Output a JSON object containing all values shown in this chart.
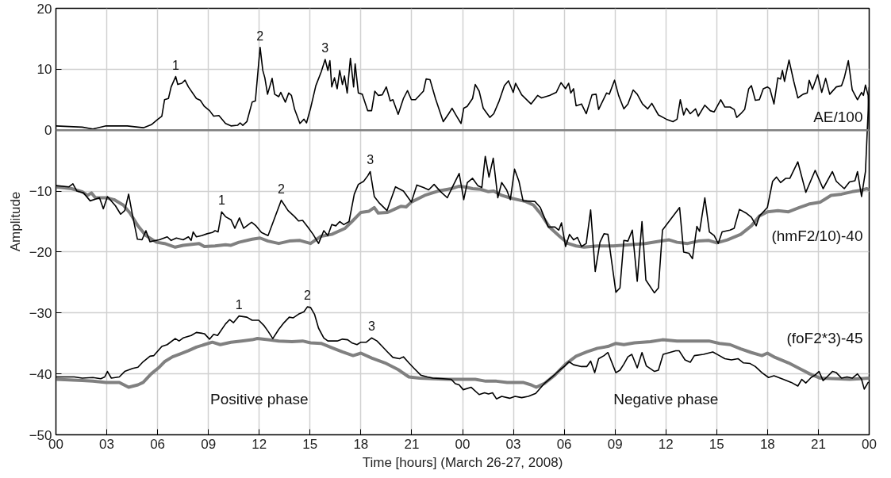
{
  "chart_data": {
    "type": "line",
    "xlabel": "Time [hours] (March 26-27, 2008)",
    "ylabel": "Amplitude",
    "xlim": [
      0,
      48
    ],
    "ylim": [
      -50,
      20
    ],
    "xticks": [
      {
        "value": 0,
        "label": "00"
      },
      {
        "value": 3,
        "label": "03"
      },
      {
        "value": 6,
        "label": "06"
      },
      {
        "value": 9,
        "label": "09"
      },
      {
        "value": 12,
        "label": "12"
      },
      {
        "value": 15,
        "label": "15"
      },
      {
        "value": 18,
        "label": "18"
      },
      {
        "value": 21,
        "label": "21"
      },
      {
        "value": 24,
        "label": "00"
      },
      {
        "value": 27,
        "label": "03"
      },
      {
        "value": 30,
        "label": "06"
      },
      {
        "value": 33,
        "label": "09"
      },
      {
        "value": 36,
        "label": "12"
      },
      {
        "value": 39,
        "label": "15"
      },
      {
        "value": 42,
        "label": "18"
      },
      {
        "value": 45,
        "label": "21"
      },
      {
        "value": 48,
        "label": "00"
      }
    ],
    "yticks": [
      -50,
      -40,
      -30,
      -20,
      -10,
      0,
      10,
      20
    ],
    "grid": true,
    "marker": "none",
    "line_style": "solid",
    "ref_lines": [
      {
        "axis": "y",
        "value": 0,
        "label": null,
        "color": "#808080"
      }
    ],
    "series": [
      {
        "name": "AE/100",
        "color": "#000000",
        "x": [
          0,
          1.55,
          2.18,
          2.96,
          4.21,
          5.16,
          5.63,
          6.02,
          6.25,
          6.41,
          6.64,
          6.8,
          7.07,
          7.19,
          7.43,
          7.62,
          7.82,
          8.29,
          8.52,
          8.76,
          9.07,
          9.31,
          9.62,
          10.01,
          10.33,
          10.72,
          10.87,
          11.03,
          11.27,
          11.58,
          11.77,
          12.05,
          12.21,
          12.33,
          12.49,
          12.76,
          12.91,
          13.15,
          13.27,
          13.54,
          13.74,
          13.9,
          14.09,
          14.4,
          14.64,
          14.79,
          15.03,
          15.34,
          15.66,
          15.89,
          16.05,
          16.17,
          16.28,
          16.44,
          16.6,
          16.75,
          16.91,
          17.03,
          17.19,
          17.38,
          17.57,
          17.66,
          17.85,
          18.08,
          18.4,
          18.63,
          18.82,
          19.03,
          19.26,
          19.5,
          19.73,
          19.89,
          20.2,
          20.51,
          20.75,
          20.98,
          21.22,
          21.69,
          21.85,
          22.08,
          22.4,
          22.86,
          23.18,
          23.38,
          23.65,
          23.91,
          24.07,
          24.27,
          24.59,
          24.75,
          24.98,
          25.22,
          25.61,
          25.84,
          26.16,
          26.47,
          26.71,
          26.99,
          27.13,
          27.49,
          28.04,
          28.43,
          28.66,
          29.13,
          29.53,
          29.81,
          30.08,
          30.26,
          30.39,
          30.55,
          30.7,
          31.02,
          31.3,
          31.64,
          31.88,
          32.03,
          32.5,
          32.66,
          32.97,
          33.21,
          33.52,
          33.76,
          34.07,
          34.31,
          34.62,
          34.93,
          35.17,
          35.56,
          36.03,
          36.42,
          36.66,
          36.85,
          37.05,
          37.21,
          37.44,
          37.75,
          37.91,
          38.3,
          38.62,
          38.85,
          39.24,
          39.48,
          39.79,
          40.03,
          40.18,
          40.42,
          40.65,
          40.89,
          41.05,
          41.28,
          41.52,
          41.75,
          41.99,
          42.14,
          42.38,
          42.61,
          42.77,
          42.88,
          43.0,
          43.27,
          43.55,
          43.79,
          44.1,
          44.34,
          44.46,
          44.65,
          44.96,
          45.2,
          45.43,
          45.67,
          46.06,
          46.37,
          46.53,
          46.77,
          47.0,
          47.31,
          47.55,
          47.66,
          47.78,
          47.94,
          48.0
        ],
        "values": [
          0.7,
          0.5,
          0.2,
          0.7,
          0.7,
          0.4,
          0.9,
          1.8,
          2.3,
          5.0,
          5.2,
          7.1,
          8.8,
          7.5,
          7.7,
          8.2,
          7.1,
          5.2,
          4.9,
          3.9,
          3.2,
          2.3,
          2.4,
          1.1,
          0.7,
          0.8,
          1.2,
          0.8,
          1.4,
          4.6,
          4.8,
          13.6,
          9.8,
          8.6,
          5.9,
          8.5,
          5.9,
          5.5,
          6.2,
          4.6,
          6.1,
          5.7,
          3.4,
          1.1,
          1.8,
          1.2,
          3.6,
          7.3,
          9.6,
          11.6,
          9.8,
          11.4,
          7.1,
          8.6,
          6.8,
          9.8,
          7.5,
          8.9,
          6.1,
          11.8,
          7.1,
          10.9,
          6.1,
          5.9,
          3.2,
          3.2,
          6.4,
          5.7,
          5.8,
          7.1,
          4.8,
          5.0,
          2.6,
          5.2,
          6.5,
          5.0,
          5.0,
          6.4,
          8.4,
          8.3,
          5.2,
          1.4,
          2.7,
          3.6,
          2.3,
          1.1,
          3.6,
          3.9,
          5.2,
          7.5,
          6.4,
          3.6,
          2.1,
          2.7,
          4.8,
          7.3,
          8.1,
          6.2,
          7.7,
          5.8,
          4.3,
          5.7,
          5.3,
          5.7,
          6.2,
          7.8,
          6.8,
          7.7,
          6.1,
          6.8,
          4.0,
          4.3,
          2.7,
          5.8,
          5.9,
          3.4,
          6.1,
          5.9,
          8.2,
          5.7,
          3.5,
          4.3,
          6.6,
          5.9,
          4.3,
          3.5,
          4.4,
          2.5,
          1.8,
          1.4,
          1.8,
          5.0,
          2.5,
          3.6,
          2.7,
          3.5,
          2.3,
          4.1,
          3.2,
          3.0,
          5.0,
          3.8,
          3.8,
          3.4,
          2.1,
          2.7,
          3.4,
          6.8,
          7.3,
          4.9,
          5.0,
          6.8,
          7.1,
          6.8,
          4.3,
          8.6,
          8.4,
          9.8,
          8.0,
          11.5,
          8.0,
          5.3,
          5.9,
          6.1,
          8.2,
          6.7,
          9.1,
          6.2,
          8.5,
          5.9,
          7.1,
          7.3,
          8.6,
          11.4,
          6.6,
          5.0,
          6.2,
          5.7,
          7.4,
          5.7,
          0
        ]
      },
      {
        "name": "(hmF2/10)-40",
        "color": "#808080",
        "x": [
          0,
          0.92,
          1.55,
          1.86,
          2.1,
          2.33,
          2.96,
          3.43,
          3.98,
          4.37,
          4.84,
          5.31,
          5.94,
          6.41,
          7.04,
          7.51,
          8.45,
          8.76,
          9.39,
          10.01,
          10.33,
          10.8,
          11.58,
          12.05,
          12.52,
          13.15,
          13.77,
          14.4,
          15.03,
          15.65,
          16.28,
          17.07,
          17.54,
          18.0,
          18.48,
          18.79,
          19.02,
          19.57,
          20.04,
          20.36,
          20.67,
          20.98,
          21.77,
          22.55,
          23.33,
          23.8,
          24.12,
          24.59,
          25.06,
          25.53,
          25.84,
          26.31,
          26.78,
          27.25,
          27.72,
          28.19,
          28.66,
          29.13,
          29.76,
          30.23,
          30.7,
          31.17,
          31.96,
          32.9,
          33.84,
          34.78,
          35.72,
          36.19,
          36.66,
          37.28,
          37.91,
          38.54,
          39.01,
          39.63,
          40.42,
          41.05,
          41.52,
          41.99,
          42.61,
          43.24,
          43.87,
          44.49,
          45.12,
          45.75,
          46.37,
          47.0,
          47.47,
          47.86,
          48.0
        ],
        "values": [
          -9.3,
          -9.6,
          -10.1,
          -10.7,
          -10.3,
          -11.1,
          -11.1,
          -11.4,
          -12.3,
          -13.6,
          -15.7,
          -17.3,
          -18.4,
          -18.6,
          -19.2,
          -18.9,
          -18.6,
          -19.1,
          -19.0,
          -18.8,
          -18.9,
          -18.4,
          -17.9,
          -17.7,
          -18.2,
          -18.6,
          -18.2,
          -18.1,
          -18.6,
          -17.4,
          -17.1,
          -16.1,
          -14.8,
          -13.5,
          -13.3,
          -12.7,
          -13.6,
          -13.5,
          -12.9,
          -12.5,
          -12.6,
          -11.8,
          -10.7,
          -10.0,
          -9.6,
          -9.2,
          -9.3,
          -9.6,
          -9.7,
          -10.1,
          -10.0,
          -10.7,
          -11.1,
          -11.4,
          -11.7,
          -12.3,
          -13.9,
          -15.9,
          -17.5,
          -18.6,
          -19.0,
          -19.2,
          -19.0,
          -19.0,
          -18.8,
          -18.6,
          -18.2,
          -18.0,
          -18.4,
          -18.6,
          -18.2,
          -18.1,
          -18.5,
          -18.0,
          -17.1,
          -15.7,
          -14.1,
          -13.4,
          -13.2,
          -13.4,
          -12.7,
          -12.1,
          -11.8,
          -10.7,
          -10.5,
          -10.1,
          -9.9,
          -9.6,
          -9.8
        ]
      },
      {
        "color": "#000000",
        "x": [
          0,
          0.77,
          1.0,
          1.24,
          1.63,
          2.02,
          2.57,
          2.8,
          3.04,
          3.51,
          3.82,
          4.06,
          4.29,
          4.53,
          4.81,
          5.08,
          5.31,
          5.55,
          6.1,
          6.57,
          6.8,
          7.11,
          7.51,
          7.82,
          7.98,
          8.1,
          8.29,
          8.6,
          8.92,
          9.23,
          9.39,
          9.57,
          9.78,
          10.01,
          10.33,
          10.56,
          10.83,
          11.08,
          11.55,
          11.81,
          12.13,
          12.52,
          13.3,
          13.7,
          14.09,
          14.32,
          14.56,
          14.87,
          15.18,
          15.5,
          15.81,
          16.05,
          16.28,
          16.52,
          16.75,
          16.99,
          17.3,
          17.61,
          17.85,
          18.16,
          18.4,
          18.55,
          18.79,
          19.1,
          19.54,
          20.04,
          20.51,
          20.98,
          21.3,
          21.69,
          22.0,
          22.32,
          22.71,
          23.1,
          23.41,
          23.8,
          24.07,
          24.28,
          24.59,
          24.9,
          25.14,
          25.34,
          25.56,
          25.81,
          26.08,
          26.31,
          26.6,
          26.82,
          27.07,
          27.33,
          27.57,
          28.27,
          28.59,
          29.06,
          29.45,
          29.68,
          29.84,
          30.08,
          30.31,
          30.55,
          30.78,
          31.02,
          31.3,
          31.56,
          31.83,
          32.11,
          32.35,
          32.58,
          33.05,
          33.29,
          33.52,
          33.76,
          34.02,
          34.31,
          34.59,
          34.82,
          35.32,
          35.56,
          35.8,
          36.81,
          37.05,
          37.36,
          37.57,
          37.83,
          37.99,
          38.3,
          38.57,
          38.85,
          39.09,
          39.32,
          39.79,
          40.03,
          40.34,
          40.73,
          41.05,
          41.33,
          41.52,
          41.99,
          42.3,
          42.53,
          42.77,
          43.08,
          43.32,
          43.79,
          44.26,
          44.81,
          45.28,
          45.83,
          46.06,
          46.53,
          46.84,
          47.16,
          47.31,
          47.55,
          47.78,
          48.0
        ],
        "values": [
          -9.1,
          -9.3,
          -8.8,
          -10.0,
          -10.3,
          -11.6,
          -11.1,
          -12.9,
          -10.9,
          -12.4,
          -13.8,
          -13.2,
          -10.5,
          -14.1,
          -17.9,
          -18.0,
          -16.5,
          -18.3,
          -18.0,
          -17.5,
          -18.1,
          -17.7,
          -18.0,
          -17.5,
          -18.1,
          -16.7,
          -17.5,
          -17.3,
          -17.0,
          -16.8,
          -16.5,
          -16.7,
          -13.4,
          -14.2,
          -14.7,
          -16.1,
          -14.4,
          -16.1,
          -15.1,
          -15.7,
          -16.8,
          -17.3,
          -11.5,
          -13.2,
          -14.2,
          -14.9,
          -14.8,
          -15.9,
          -17.1,
          -18.6,
          -16.5,
          -17.3,
          -15.5,
          -15.7,
          -15.0,
          -15.5,
          -15.0,
          -10.5,
          -8.9,
          -8.4,
          -7.5,
          -6.8,
          -10.9,
          -12.0,
          -13.2,
          -9.3,
          -10.0,
          -11.8,
          -9.0,
          -9.4,
          -9.8,
          -8.9,
          -10.1,
          -11.1,
          -9.3,
          -7.1,
          -11.4,
          -8.6,
          -7.9,
          -9.1,
          -9.4,
          -4.3,
          -7.7,
          -4.6,
          -11.1,
          -8.6,
          -9.8,
          -11.4,
          -6.4,
          -8.4,
          -11.6,
          -11.7,
          -12.7,
          -15.9,
          -15.9,
          -16.4,
          -15.2,
          -19.1,
          -17.1,
          -18.0,
          -17.6,
          -19.1,
          -18.6,
          -13.1,
          -23.2,
          -18.4,
          -17.0,
          -17.1,
          -26.6,
          -25.9,
          -18.1,
          -18.2,
          -16.4,
          -24.8,
          -15.0,
          -24.6,
          -26.7,
          -25.9,
          -16.4,
          -12.7,
          -20.0,
          -20.2,
          -21.1,
          -15.8,
          -16.6,
          -11.1,
          -16.7,
          -17.3,
          -18.6,
          -16.7,
          -16.4,
          -16.1,
          -13.0,
          -13.6,
          -14.3,
          -15.7,
          -14.1,
          -12.7,
          -8.4,
          -7.7,
          -8.6,
          -7.9,
          -7.9,
          -5.2,
          -10.2,
          -6.6,
          -9.6,
          -6.8,
          -8.4,
          -9.6,
          -8.5,
          -8.3,
          -6.8,
          -10.9,
          -6.8,
          7.0
        ]
      },
      {
        "name": "(foF2*3)-45",
        "color": "#808080",
        "x": [
          0,
          1.55,
          2.18,
          2.96,
          3.74,
          4.29,
          4.84,
          5.15,
          5.62,
          6.1,
          6.41,
          6.88,
          7.35,
          7.82,
          8.29,
          8.76,
          9.23,
          9.7,
          10.33,
          10.95,
          11.58,
          11.89,
          12.52,
          13.15,
          13.93,
          14.56,
          15.03,
          15.65,
          16.28,
          16.91,
          17.54,
          18.0,
          18.63,
          19.42,
          20.2,
          20.83,
          21.45,
          22.24,
          23.18,
          24.12,
          24.75,
          25.37,
          26.0,
          26.63,
          27.57,
          28.04,
          28.35,
          28.82,
          29.45,
          30.08,
          30.7,
          31.33,
          31.96,
          32.58,
          33.05,
          33.52,
          34.15,
          35.09,
          35.8,
          36.66,
          37.6,
          38.54,
          39.16,
          39.79,
          40.42,
          41.05,
          41.67,
          41.99,
          42.45,
          43.24,
          43.87,
          44.49,
          45.12,
          46.06,
          46.84,
          47.47,
          48.0
        ],
        "values": [
          -40.9,
          -41.1,
          -41.2,
          -41.4,
          -41.4,
          -42.2,
          -41.8,
          -41.4,
          -40.0,
          -38.9,
          -38.0,
          -37.2,
          -36.7,
          -36.2,
          -35.6,
          -35.2,
          -34.8,
          -35.2,
          -34.8,
          -34.6,
          -34.4,
          -34.2,
          -34.4,
          -34.6,
          -34.7,
          -34.6,
          -34.9,
          -35.0,
          -35.7,
          -36.4,
          -37.0,
          -36.6,
          -37.4,
          -38.2,
          -39.3,
          -40.5,
          -40.7,
          -40.8,
          -40.9,
          -40.9,
          -40.9,
          -41.2,
          -41.2,
          -41.4,
          -41.4,
          -41.8,
          -42.2,
          -41.6,
          -40.2,
          -38.4,
          -37.1,
          -36.4,
          -35.8,
          -35.5,
          -35.0,
          -35.2,
          -34.9,
          -34.7,
          -34.4,
          -34.6,
          -34.6,
          -34.6,
          -35.0,
          -35.2,
          -35.9,
          -36.5,
          -37.0,
          -36.6,
          -37.3,
          -38.2,
          -39.1,
          -40.0,
          -40.7,
          -40.8,
          -40.9,
          -40.8,
          -40.7
        ]
      },
      {
        "color": "#000000",
        "x": [
          0,
          1.08,
          1.55,
          2.18,
          2.65,
          2.88,
          3.04,
          3.27,
          3.74,
          4.06,
          4.53,
          4.84,
          5.15,
          5.55,
          5.78,
          6.25,
          6.57,
          7.04,
          7.27,
          7.51,
          7.98,
          8.29,
          8.76,
          9.07,
          9.31,
          9.54,
          10.01,
          10.25,
          10.48,
          10.8,
          11.27,
          11.58,
          11.97,
          12.29,
          12.52,
          12.8,
          13.15,
          13.46,
          13.77,
          14.01,
          14.32,
          14.64,
          14.84,
          15.03,
          15.26,
          15.5,
          15.81,
          16.05,
          16.6,
          16.91,
          17.22,
          17.46,
          17.77,
          18.0,
          18.32,
          18.63,
          18.95,
          19.26,
          19.57,
          19.89,
          20.28,
          20.51,
          20.83,
          21.14,
          21.53,
          21.92,
          22.24,
          22.86,
          23.33,
          23.57,
          23.8,
          24.04,
          24.51,
          24.98,
          25.3,
          25.53,
          25.77,
          26.0,
          26.31,
          26.78,
          27.1,
          27.49,
          27.88,
          28.32,
          28.82,
          29.29,
          29.76,
          30.0,
          30.28,
          30.55,
          31.02,
          31.33,
          31.56,
          31.8,
          32.03,
          32.35,
          32.58,
          33.05,
          33.29,
          33.52,
          33.76,
          33.99,
          34.31,
          34.59,
          34.85,
          35.33,
          35.56,
          35.84,
          36.58,
          36.78,
          37.13,
          37.44,
          37.68,
          38.22,
          38.77,
          39.16,
          39.48,
          39.87,
          40.26,
          40.58,
          40.97,
          41.28,
          41.67,
          42.06,
          42.38,
          42.93,
          43.4,
          43.79,
          44.02,
          44.26,
          44.57,
          44.81,
          45.04,
          45.28,
          45.51,
          45.83,
          46.06,
          46.37,
          46.69,
          47.0,
          47.31,
          47.55,
          47.71,
          47.94
        ],
        "values": [
          -40.5,
          -40.5,
          -40.7,
          -40.6,
          -40.8,
          -40.5,
          -39.6,
          -40.7,
          -40.5,
          -39.6,
          -39.1,
          -38.9,
          -38.0,
          -37.1,
          -37.0,
          -35.5,
          -35.2,
          -34.2,
          -34.6,
          -34.1,
          -33.7,
          -33.2,
          -33.4,
          -34.3,
          -33.5,
          -33.7,
          -31.8,
          -31.1,
          -31.6,
          -30.5,
          -30.7,
          -31.2,
          -31.2,
          -32.1,
          -33.0,
          -34.2,
          -32.7,
          -31.6,
          -30.7,
          -30.8,
          -30.2,
          -29.8,
          -29.0,
          -29.1,
          -30.2,
          -32.5,
          -34.1,
          -34.6,
          -34.6,
          -34.3,
          -34.4,
          -34.9,
          -35.2,
          -34.8,
          -34.8,
          -34.1,
          -34.6,
          -35.5,
          -36.4,
          -37.3,
          -37.5,
          -37.2,
          -38.2,
          -39.1,
          -40.2,
          -40.5,
          -40.7,
          -40.8,
          -40.9,
          -41.6,
          -41.8,
          -42.6,
          -42.2,
          -43.4,
          -43.1,
          -43.3,
          -43.1,
          -44.1,
          -43.7,
          -44.0,
          -43.7,
          -43.9,
          -43.7,
          -43.2,
          -41.6,
          -40.5,
          -39.3,
          -38.8,
          -38.0,
          -38.5,
          -38.8,
          -38.8,
          -37.9,
          -39.8,
          -37.5,
          -37.0,
          -36.5,
          -39.8,
          -39.4,
          -38.4,
          -37.2,
          -36.8,
          -39.0,
          -36.5,
          -38.7,
          -39.6,
          -39.4,
          -36.8,
          -36.2,
          -36.2,
          -37.7,
          -38.1,
          -37.0,
          -36.8,
          -36.4,
          -37.0,
          -37.5,
          -37.7,
          -37.5,
          -38.2,
          -38.3,
          -38.8,
          -39.8,
          -40.6,
          -40.3,
          -40.9,
          -41.4,
          -42.0,
          -40.9,
          -41.5,
          -40.6,
          -40.2,
          -39.6,
          -41.1,
          -40.5,
          -39.6,
          -39.8,
          -40.7,
          -40.5,
          -40.7,
          -40.0,
          -40.9,
          -42.5,
          -41.4
        ]
      }
    ],
    "annotations": [
      {
        "text": "1",
        "x": 7.07,
        "y": 8.8
      },
      {
        "text": "2",
        "x": 12.05,
        "y": 13.6
      },
      {
        "text": "3",
        "x": 15.89,
        "y": 11.6
      },
      {
        "text": "1",
        "x": 9.78,
        "y": -13.4
      },
      {
        "text": "2",
        "x": 13.3,
        "y": -11.5
      },
      {
        "text": "3",
        "x": 18.55,
        "y": -6.8
      },
      {
        "text": "1",
        "x": 10.8,
        "y": -30.5
      },
      {
        "text": "2",
        "x": 14.84,
        "y": -29.0
      },
      {
        "text": "3",
        "x": 18.63,
        "y": -34.1
      },
      "Positive phase",
      "Negative phase"
    ]
  }
}
